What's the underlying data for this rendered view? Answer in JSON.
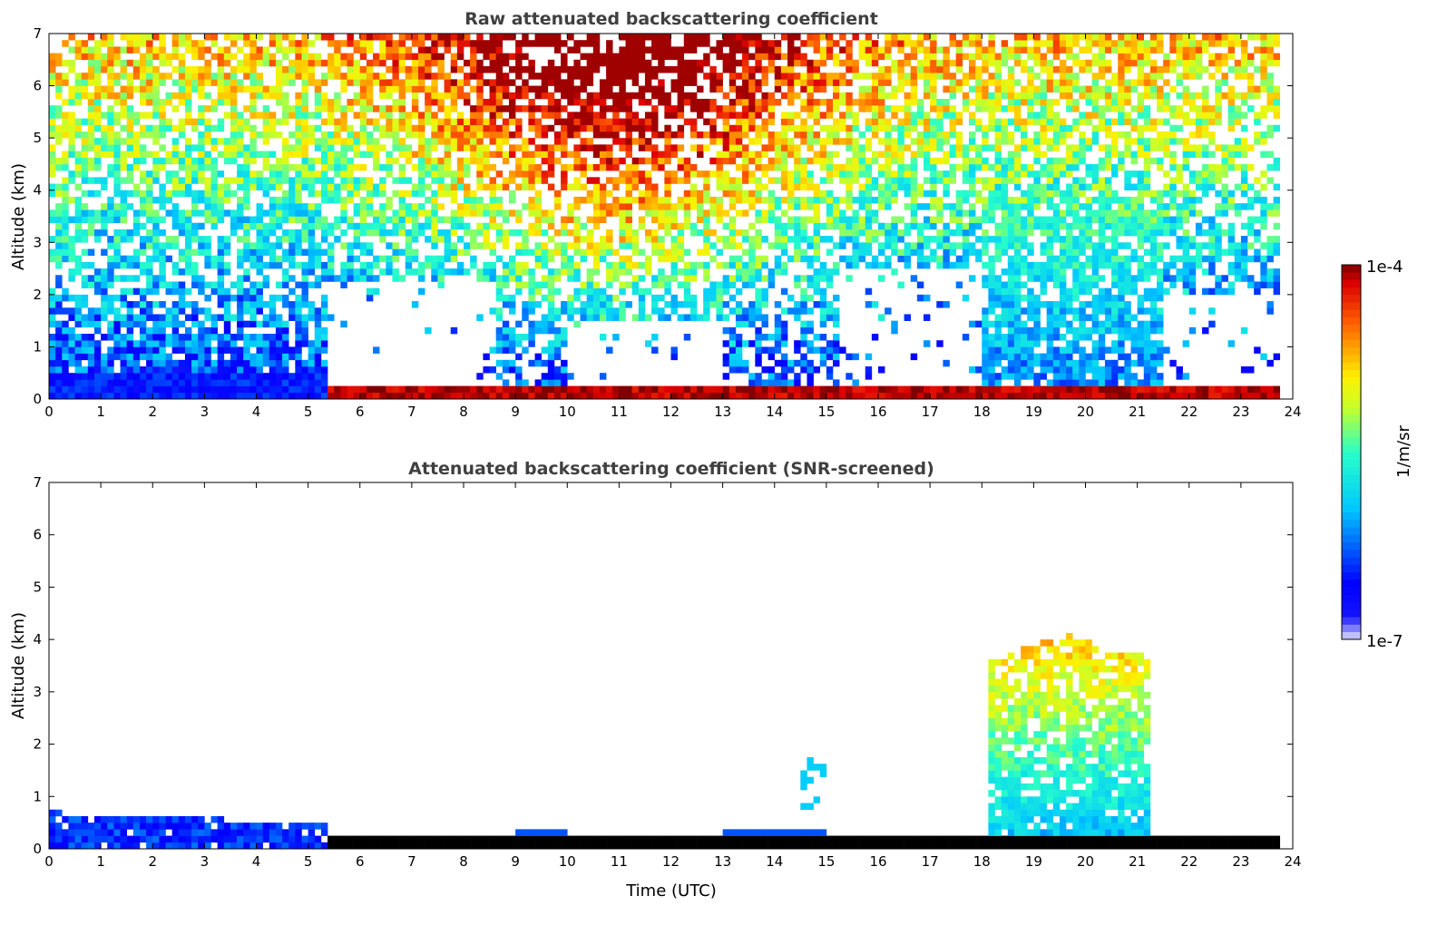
{
  "chart_data": [
    {
      "type": "heatmap",
      "title": "Raw attenuated backscattering coefficient",
      "xlabel": "",
      "ylabel": "Altitude (km)",
      "xlim": [
        0,
        24
      ],
      "ylim": [
        0,
        7
      ],
      "xticks": [
        "0",
        "1",
        "2",
        "3",
        "4",
        "5",
        "6",
        "7",
        "8",
        "9",
        "10",
        "11",
        "12",
        "13",
        "14",
        "15",
        "16",
        "17",
        "18",
        "19",
        "20",
        "21",
        "22",
        "23",
        "24"
      ],
      "yticks": [
        "0",
        "1",
        "2",
        "3",
        "4",
        "5",
        "6",
        "7"
      ],
      "data_end_hour": 23.75,
      "features": [
        {
          "name": "night boundary layer",
          "t": [
            0,
            5.4
          ],
          "z": [
            0,
            0.5
          ],
          "log10_value": -6.5
        },
        {
          "name": "surface layer",
          "t": [
            5.4,
            23.75
          ],
          "z": [
            0,
            0.25
          ],
          "log10_value": -4.1
        },
        {
          "name": "daytime upper noise",
          "t": [
            6,
            14
          ],
          "z": [
            3,
            7
          ],
          "log10_value": -4.4
        },
        {
          "name": "evening cloud",
          "t": [
            18,
            21.5
          ],
          "z": [
            0.3,
            4
          ],
          "log10_value": -5.5
        }
      ]
    },
    {
      "type": "heatmap",
      "title": "Attenuated backscattering coefficient (SNR-screened)",
      "xlabel": "Time (UTC)",
      "ylabel": "Altitude (km)",
      "xlim": [
        0,
        24
      ],
      "ylim": [
        0,
        7
      ],
      "xticks": [
        "0",
        "1",
        "2",
        "3",
        "4",
        "5",
        "6",
        "7",
        "8",
        "9",
        "10",
        "11",
        "12",
        "13",
        "14",
        "15",
        "16",
        "17",
        "18",
        "19",
        "20",
        "21",
        "22",
        "23",
        "24"
      ],
      "yticks": [
        "0",
        "1",
        "2",
        "3",
        "4",
        "5",
        "6",
        "7"
      ],
      "data_end_hour": 23.75,
      "features": [
        {
          "name": "night boundary layer",
          "t": [
            0,
            5.4
          ],
          "z": [
            0,
            0.7
          ],
          "log10_value": -6.5
        },
        {
          "name": "surface layer",
          "t": [
            5.4,
            23.75
          ],
          "z": [
            0,
            0.2
          ],
          "log10_value": -3.9
        },
        {
          "name": "evening cloud",
          "t": [
            18.1,
            21.3
          ],
          "z": [
            0.3,
            4.2
          ],
          "log10_value": -5.4
        }
      ]
    }
  ],
  "colorbar": {
    "label": "1/m/sr",
    "min_label": "1e-7",
    "max_label": "1e-4",
    "range_log10": [
      -7,
      -4
    ]
  }
}
